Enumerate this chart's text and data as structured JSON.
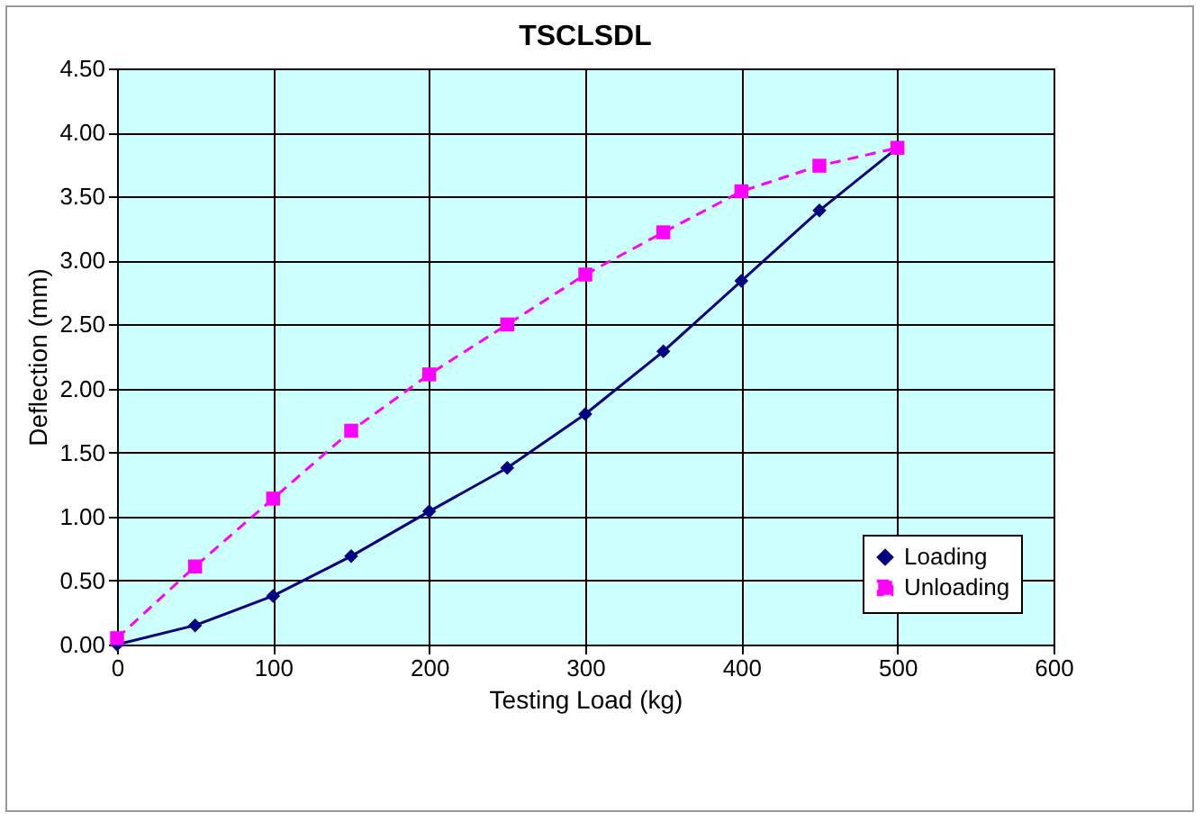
{
  "chart_data": {
    "type": "line",
    "title": "TSCLSDL",
    "xlabel": "Testing Load (kg)",
    "ylabel": "Deflection (mm)",
    "x": [
      0,
      50,
      100,
      150,
      200,
      250,
      300,
      350,
      400,
      450,
      500
    ],
    "series": [
      {
        "name": "Loading",
        "color": "#000080",
        "marker": "diamond",
        "line_style": "solid",
        "values": [
          0,
          0.15,
          0.38,
          0.69,
          1.04,
          1.38,
          1.8,
          2.29,
          2.84,
          3.39,
          3.88
        ]
      },
      {
        "name": "Unloading",
        "color": "#ff00ff",
        "marker": "square",
        "line_style": "dashed",
        "values": [
          0.05,
          0.61,
          1.14,
          1.67,
          2.11,
          2.5,
          2.89,
          3.22,
          3.54,
          3.74,
          3.88
        ]
      }
    ],
    "xlim": [
      0,
      600
    ],
    "xticks": [
      0,
      100,
      200,
      300,
      400,
      500,
      600
    ],
    "ylim": [
      0,
      4.5
    ],
    "yticks": [
      {
        "value": 0,
        "label": "0.00"
      },
      {
        "value": 0.5,
        "label": "0.50"
      },
      {
        "value": 1,
        "label": "1.00"
      },
      {
        "value": 1.5,
        "label": "1.50"
      },
      {
        "value": 2,
        "label": "2.00"
      },
      {
        "value": 2.5,
        "label": "2.50"
      },
      {
        "value": 3,
        "label": "3.00"
      },
      {
        "value": 3.5,
        "label": "3.50"
      },
      {
        "value": 4,
        "label": "4.00"
      },
      {
        "value": 4.5,
        "label": "4.50"
      }
    ],
    "grid": true,
    "legend": "bottom right"
  }
}
